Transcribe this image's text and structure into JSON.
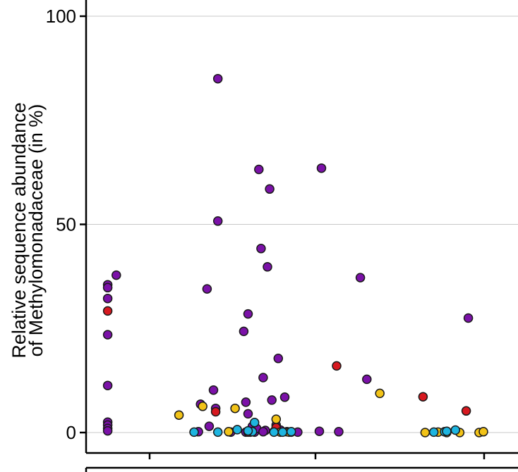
{
  "chart_data": {
    "type": "scatter",
    "ylabel_line1": "Relative sequence abundance",
    "ylabel_line2": "of Methylomonadaceae (in %)",
    "ylim": [
      0,
      100
    ],
    "yticks": [
      0,
      50,
      100
    ],
    "xlim": [
      0,
      1
    ],
    "grid": "horizontal",
    "colors": {
      "purple": "#7b11a8",
      "red": "#d71920",
      "yellow": "#f2c318",
      "cyan": "#1eb5e0"
    },
    "series": [
      {
        "color_key": "purple",
        "points": [
          [
            0.05,
            35.5
          ],
          [
            0.05,
            34.8
          ],
          [
            0.05,
            32.2
          ],
          [
            0.05,
            23.5
          ],
          [
            0.05,
            11.3
          ],
          [
            0.05,
            2.5
          ],
          [
            0.05,
            1.8
          ],
          [
            0.05,
            1.0
          ],
          [
            0.05,
            0.4
          ],
          [
            0.07,
            37.8
          ],
          [
            0.265,
            6.8
          ],
          [
            0.28,
            34.5
          ],
          [
            0.295,
            10.2
          ],
          [
            0.3,
            5.8
          ],
          [
            0.305,
            85.0
          ],
          [
            0.305,
            50.8
          ],
          [
            0.285,
            1.5
          ],
          [
            0.26,
            0.2
          ],
          [
            0.365,
            24.3
          ],
          [
            0.37,
            7.3
          ],
          [
            0.375,
            28.5
          ],
          [
            0.375,
            4.5
          ],
          [
            0.38,
            0.5
          ],
          [
            0.385,
            1.5
          ],
          [
            0.39,
            0.1
          ],
          [
            0.395,
            1.0
          ],
          [
            0.4,
            63.2
          ],
          [
            0.405,
            44.2
          ],
          [
            0.41,
            13.2
          ],
          [
            0.415,
            0.5
          ],
          [
            0.42,
            39.8
          ],
          [
            0.425,
            58.5
          ],
          [
            0.43,
            7.8
          ],
          [
            0.435,
            0.2
          ],
          [
            0.44,
            1.8
          ],
          [
            0.445,
            17.8
          ],
          [
            0.45,
            0.6
          ],
          [
            0.46,
            8.5
          ],
          [
            0.465,
            0.2
          ],
          [
            0.475,
            0.1
          ],
          [
            0.49,
            0.1
          ],
          [
            0.37,
            0.1
          ],
          [
            0.54,
            0.3
          ],
          [
            0.545,
            63.5
          ],
          [
            0.585,
            0.2
          ],
          [
            0.635,
            37.2
          ],
          [
            0.65,
            12.8
          ],
          [
            0.38,
            0.1
          ],
          [
            0.41,
            0.2
          ],
          [
            0.335,
            0.1
          ],
          [
            0.885,
            27.5
          ]
        ]
      },
      {
        "color_key": "red",
        "points": [
          [
            0.05,
            29.2
          ],
          [
            0.3,
            5.0
          ],
          [
            0.44,
            1.2
          ],
          [
            0.58,
            16.0
          ],
          [
            0.78,
            8.6
          ],
          [
            0.88,
            5.2
          ],
          [
            0.375,
            0.1
          ]
        ]
      },
      {
        "color_key": "yellow",
        "points": [
          [
            0.215,
            4.2
          ],
          [
            0.27,
            6.3
          ],
          [
            0.345,
            5.8
          ],
          [
            0.33,
            0.2
          ],
          [
            0.44,
            3.2
          ],
          [
            0.45,
            0.1
          ],
          [
            0.47,
            0.1
          ],
          [
            0.68,
            9.4
          ],
          [
            0.785,
            0.0
          ],
          [
            0.815,
            0.1
          ],
          [
            0.835,
            0.0
          ],
          [
            0.865,
            0.0
          ],
          [
            0.91,
            0.0
          ],
          [
            0.92,
            0.2
          ]
        ]
      },
      {
        "color_key": "cyan",
        "points": [
          [
            0.25,
            0.1
          ],
          [
            0.305,
            0.1
          ],
          [
            0.35,
            0.7
          ],
          [
            0.385,
            0.2
          ],
          [
            0.39,
            2.4
          ],
          [
            0.435,
            0.1
          ],
          [
            0.455,
            0.1
          ],
          [
            0.475,
            0.2
          ],
          [
            0.805,
            0.1
          ],
          [
            0.83,
            0.2
          ],
          [
            0.835,
            0.3
          ],
          [
            0.855,
            0.6
          ],
          [
            0.375,
            0.4
          ]
        ]
      }
    ]
  }
}
